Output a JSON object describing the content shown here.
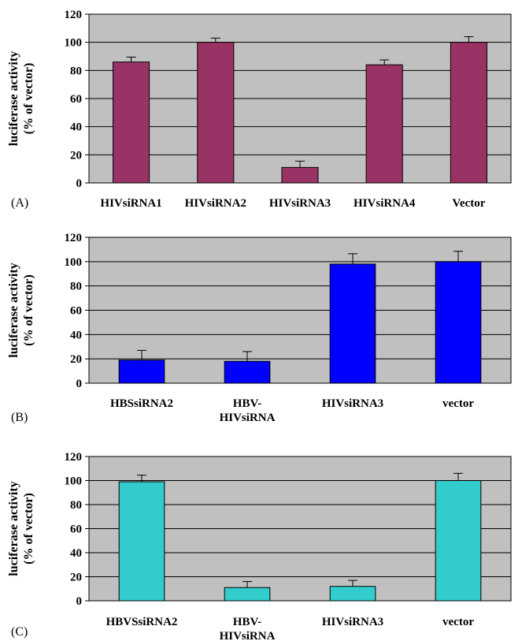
{
  "chart_data": [
    {
      "type": "bar",
      "panel_label": "(A)",
      "ylabel_lines": [
        "luciferase activity",
        "(% of vector)"
      ],
      "ylim": [
        0,
        120
      ],
      "yticks": [
        "0",
        "20",
        "40",
        "60",
        "80",
        "100",
        "120"
      ],
      "grid": true,
      "categories": [
        [
          "HIVsiRNA1"
        ],
        [
          "HIVsiRNA2"
        ],
        [
          "HIVsiRNA3"
        ],
        [
          "HIVsiRNA4"
        ],
        [
          "Vector"
        ]
      ],
      "values": [
        86,
        100,
        11,
        84,
        100
      ],
      "errors": [
        3.5,
        3,
        4.5,
        3.5,
        4
      ],
      "bar_color": "#993366"
    },
    {
      "type": "bar",
      "panel_label": "(B)",
      "ylabel_lines": [
        "luciferase activity",
        "(% of vector)"
      ],
      "ylim": [
        0,
        120
      ],
      "yticks": [
        "0",
        "20",
        "40",
        "60",
        "80",
        "100",
        "120"
      ],
      "grid": true,
      "categories": [
        [
          "HBSsiRNA2"
        ],
        [
          "HBV-",
          "HIVsiRNA"
        ],
        [
          "HIVsiRNA3"
        ],
        [
          "vector"
        ]
      ],
      "values": [
        19,
        18,
        98,
        100
      ],
      "errors": [
        8,
        8,
        8.5,
        8.5
      ],
      "bar_color": "#0000ff"
    },
    {
      "type": "bar",
      "panel_label": "(C)",
      "ylabel_lines": [
        "luciferase activity",
        "(% of vector)"
      ],
      "ylim": [
        0,
        120
      ],
      "yticks": [
        "0",
        "20",
        "40",
        "60",
        "80",
        "100",
        "120"
      ],
      "grid": true,
      "categories": [
        [
          "HBVSsiRNA2"
        ],
        [
          "HBV-",
          "HIVsiRNA"
        ],
        [
          "HIVsiRNA3"
        ],
        [
          "vector"
        ]
      ],
      "values": [
        99,
        11,
        12,
        100
      ],
      "errors": [
        5.5,
        5,
        5,
        6
      ],
      "bar_color": "#33cccc"
    }
  ]
}
